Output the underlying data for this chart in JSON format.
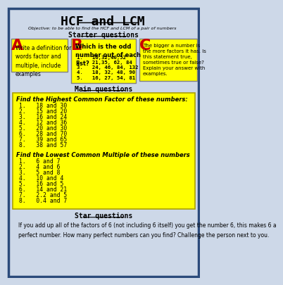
{
  "title": "HCF and LCM",
  "objective": "Objective: to be able to find the HCF and LCM of a pair of numbers",
  "bg_color": "#cdd8e8",
  "outer_border_color": "#2b4a7a",
  "starter_heading": "Starter questions",
  "main_heading": "Main questions",
  "star_heading": "Star questions",
  "box_A_label": "A",
  "box_A_text": "Write a definition for the\nwords factor and\nmultiple, include\nexamples",
  "box_B_label": "B",
  "box_B_title": "Which is the odd\nnumber out of each\nlist?",
  "box_B_items": [
    "1.   16,32,40,52",
    "2.   21,35, 62, 84",
    "3.   24, 46, 84, 132",
    "4.   18, 32, 48, 90",
    "5.   16, 27, 54, 81"
  ],
  "box_C_label": "C",
  "box_C_text": "The bigger a number is\nthe more factors it has. Is\nthis statement true,\nsometimes true or false?\nExplain your answer with\nexamples.",
  "yellow_box_color": "#ffff00",
  "red_label_color": "#cc0000",
  "hcf_heading": "Find the Highest Common Factor of these numbers:",
  "hcf_items": [
    "1.   18 and 30",
    "2.   15 and 20",
    "3.   16 and 24",
    "4.   12 and 36",
    "5.   20 and 30",
    "6.   28 and 70",
    "7.   39 and 65",
    "8.   38 and 57"
  ],
  "lcm_heading": "Find the Lowest Common Multiple of these numbers",
  "lcm_items": [
    "1.   6 and 7",
    "2.   4 and 6",
    "3.   5 and 8",
    "4.   10 and 4",
    "5.   16 and 5",
    "6.   14 and 21",
    "7.   2.2 and 5",
    "8.   0.4 and 7"
  ],
  "star_text": "If you add up all of the factors of 6 (not including 6 itself) you get the number 6, this makes 6 a\nperfect number. How many perfect numbers can you find? Challenge the person next to you."
}
